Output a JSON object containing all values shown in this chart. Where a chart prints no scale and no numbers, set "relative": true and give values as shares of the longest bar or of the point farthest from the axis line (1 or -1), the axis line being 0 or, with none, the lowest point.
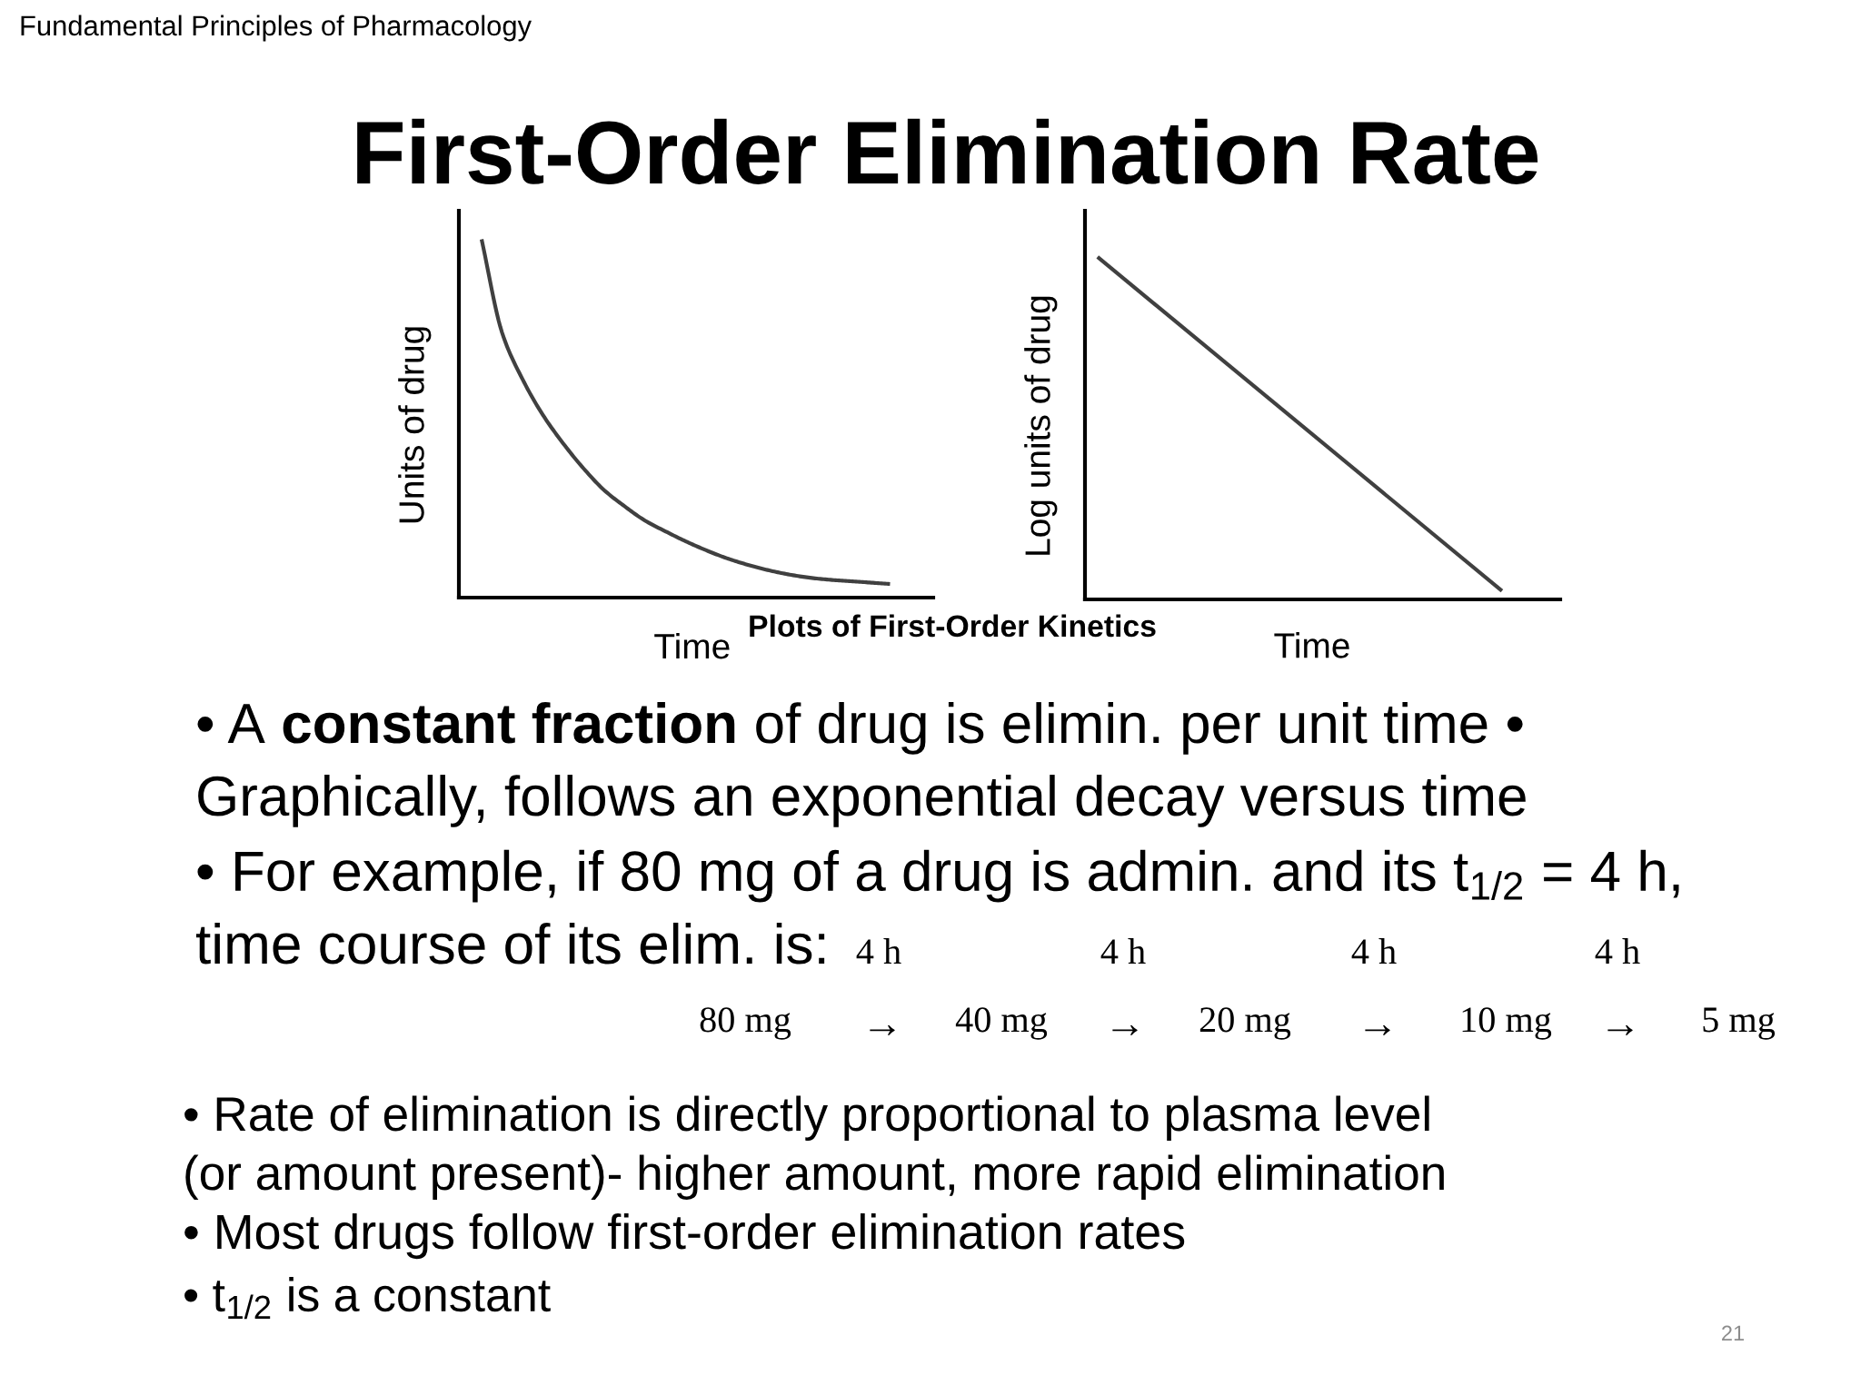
{
  "chart_data": [
    {
      "type": "other",
      "title": "First-Order Elimination Rate",
      "annotations": [
        "Fundamental Principles of Pharmacology"
      ]
    },
    {
      "type": "line",
      "xlabel": "Time",
      "ylabel": "Units of drug",
      "relative": true,
      "categories": [
        null,
        null,
        null,
        null,
        null,
        null,
        null,
        null,
        null,
        null,
        null,
        null,
        null,
        null,
        null,
        null,
        null,
        null,
        null,
        null,
        null
      ],
      "series": [
        {
          "color": "#404040",
          "values": [
            1,
            0.74,
            0.61,
            0.51,
            0.43,
            0.36,
            0.3,
            0.255,
            0.215,
            0.185,
            0.157,
            0.132,
            0.11,
            0.092,
            0.077,
            0.065,
            0.056,
            0.05,
            0.046,
            0.042,
            0.038
          ]
        }
      ]
    },
    {
      "type": "line",
      "xlabel": "Time",
      "ylabel": "Log units of drug",
      "relative": true,
      "categories": [
        null,
        null
      ],
      "series": [
        {
          "color": "#404040",
          "values": [
            1,
            0.025
          ]
        }
      ]
    },
    {
      "type": "other",
      "annotations": [
        "Plots of First-Order Kinetics",
        "• A",
        "constant fraction",
        "of drug is elimin. per unit time •",
        "Graphically, follows an exponential decay versus time",
        "• For example, if 80 mg of a drug is admin. and its t$_{1/2}$ = 4 h,",
        "time course of its elim. is:",
        "4 h",
        "4 h",
        "4 h",
        "4 h",
        "80 mg",
        "→",
        "40 mg",
        "→",
        "20 mg",
        "→",
        "10 mg",
        "→",
        "5 mg",
        "• Rate of elimination is directly proportional to plasma level",
        "(or amount present)- higher amount, more rapid elimination",
        "• Most drugs follow first-order elimination rates",
        "• t$_{1/2}$ is a constant",
        "21"
      ]
    }
  ]
}
